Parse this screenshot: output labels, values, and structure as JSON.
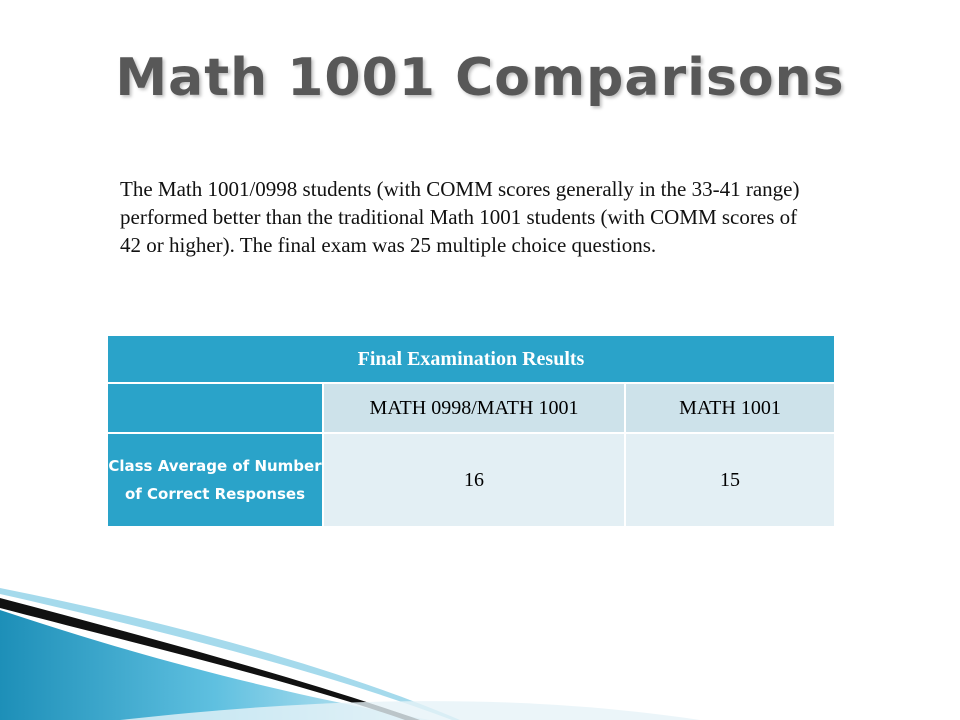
{
  "slide": {
    "title": "Math 1001 Comparisons",
    "body": "The Math 1001/0998 students (with COMM scores generally in the 33-41 range) performed better than the traditional Math 1001 students (with COMM scores of 42 or higher). The final exam was 25 multiple choice questions."
  },
  "table": {
    "title": "Final Examination Results",
    "columns": [
      "",
      "MATH 0998/MATH 1001",
      "MATH 1001"
    ],
    "rows": [
      {
        "label": "Class Average of Number of Correct Responses",
        "values": [
          "16",
          "15"
        ]
      }
    ]
  },
  "colors": {
    "accent": "#2aa3c9",
    "header_row": "#cde2ea",
    "data_row": "#e3eff4",
    "title_text": "#585858"
  }
}
